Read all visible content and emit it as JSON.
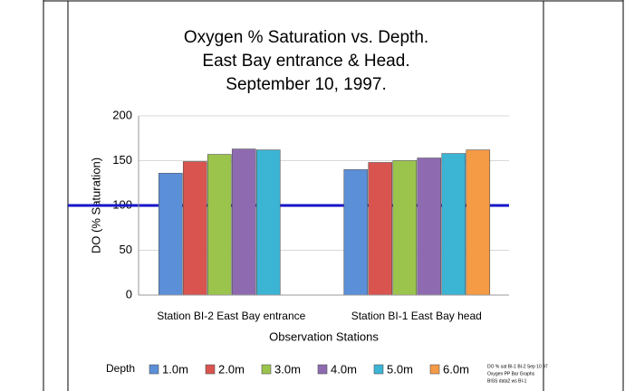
{
  "chart_data": {
    "type": "bar",
    "title": [
      "Oxygen % Saturation vs. Depth.",
      "East Bay entrance & Head.",
      "September 10, 1997."
    ],
    "categories": [
      "Station BI-2 East Bay entrance",
      "Station BI-1 East Bay head"
    ],
    "series": [
      {
        "name": "1.0m",
        "color": "#5b8fd8",
        "values": [
          136,
          140
        ]
      },
      {
        "name": "2.0m",
        "color": "#d9544f",
        "values": [
          149,
          148
        ]
      },
      {
        "name": "3.0m",
        "color": "#9bc44c",
        "values": [
          157,
          150
        ]
      },
      {
        "name": "4.0m",
        "color": "#8e6bb0",
        "values": [
          163,
          153
        ]
      },
      {
        "name": "5.0m",
        "color": "#3cb4d4",
        "values": [
          162,
          158
        ]
      },
      {
        "name": "6.0m",
        "color": "#f59a45",
        "values": [
          null,
          162
        ]
      }
    ],
    "ylim": [
      0,
      200
    ],
    "yticks": [
      0,
      50,
      100,
      150,
      200
    ],
    "grid": true,
    "y_label": "DO (% Saturation)",
    "x_label": "Observation Stations",
    "legend_title": "Depth",
    "legend": "bottom",
    "reference_line": {
      "value": 100,
      "color": "#1515c8"
    },
    "footnote": [
      "DO % sat BI-1 BI-2 Sep 10 97",
      "Oxygen PP Bar Graphs",
      "BISS data2 ws BI-1"
    ]
  }
}
